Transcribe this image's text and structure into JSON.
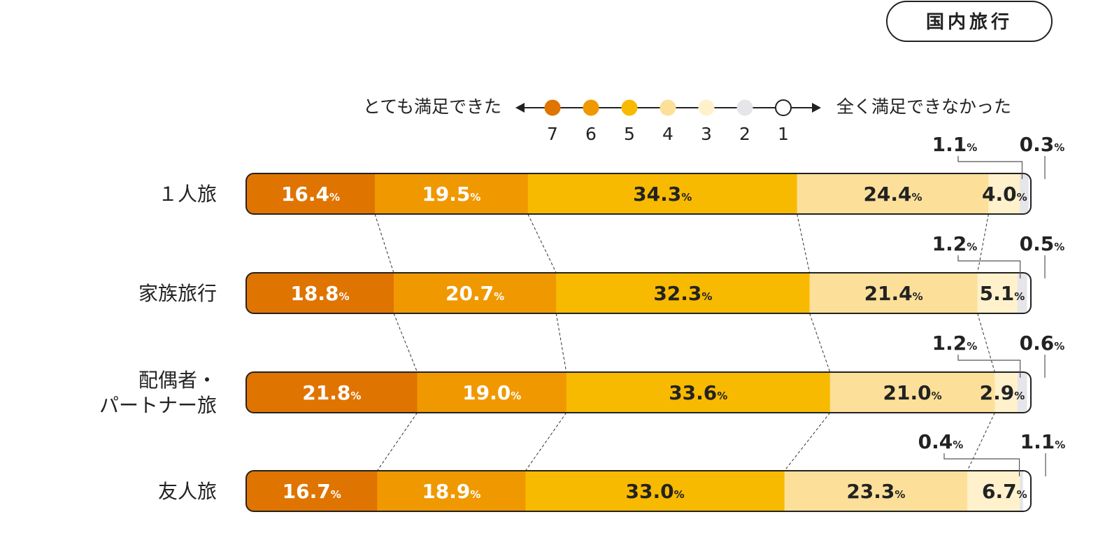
{
  "badge": "国内旅行",
  "legend": {
    "left_label": "とても満足できた",
    "right_label": "全く満足できなかった",
    "levels": [
      "7",
      "6",
      "5",
      "4",
      "3",
      "2",
      "1"
    ]
  },
  "colors": [
    "#E07400",
    "#F09800",
    "#F8BA00",
    "#FCE09A",
    "#FEF1CC",
    "#E5E5EA",
    "#FFFFFF"
  ],
  "chart_data": {
    "type": "bar",
    "orientation": "horizontal",
    "stacked": true,
    "unit": "%",
    "categories": [
      [
        "１人旅"
      ],
      [
        "家族旅行"
      ],
      [
        "配偶者・",
        "パートナー旅"
      ],
      [
        "友人旅"
      ]
    ],
    "series": [
      {
        "name": "7",
        "values": [
          16.4,
          18.8,
          21.8,
          16.7
        ]
      },
      {
        "name": "6",
        "values": [
          19.5,
          20.7,
          19.0,
          18.9
        ]
      },
      {
        "name": "5",
        "values": [
          34.3,
          32.3,
          33.6,
          33.0
        ]
      },
      {
        "name": "4",
        "values": [
          24.4,
          21.4,
          21.0,
          23.3
        ]
      },
      {
        "name": "3",
        "values": [
          4.0,
          5.1,
          2.9,
          6.7
        ]
      },
      {
        "name": "2",
        "values": [
          1.1,
          1.2,
          1.2,
          0.4
        ]
      },
      {
        "name": "1",
        "values": [
          0.3,
          0.5,
          0.6,
          1.1
        ]
      }
    ],
    "xlim": [
      0,
      100
    ]
  }
}
